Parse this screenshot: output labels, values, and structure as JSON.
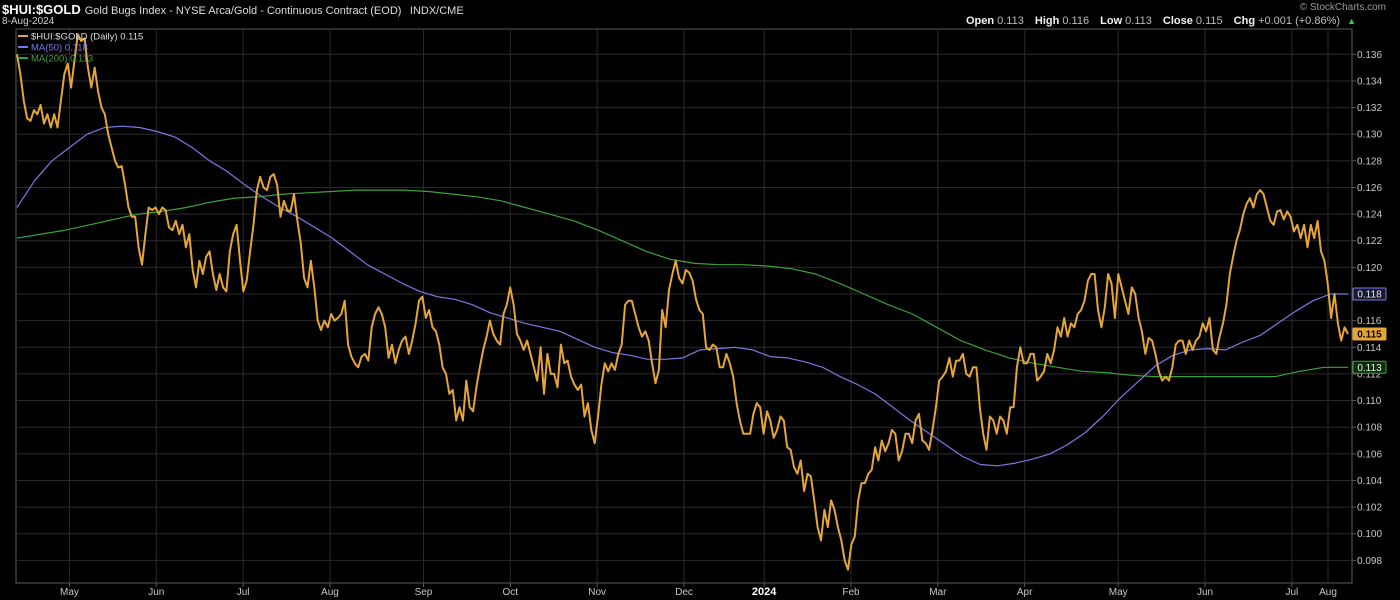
{
  "header": {
    "symbol": "$HUI:$GOLD",
    "description": "Gold Bugs Index - NYSE Arca/Gold - Continuous Contract (EOD)",
    "exchange": "INDX/CME",
    "date": "8-Aug-2024",
    "brand": "© StockCharts.com"
  },
  "ohlc": {
    "open_label": "Open",
    "open": "0.113",
    "high_label": "High",
    "high": "0.116",
    "low_label": "Low",
    "low": "0.113",
    "close_label": "Close",
    "close": "0.115",
    "chg_label": "Chg",
    "chg": "+0.001 (+0.86%)"
  },
  "colors": {
    "price": "#e5a537",
    "ma50": "#7b78e8",
    "ma200": "#3aa23a",
    "grid": "#2a2a2a",
    "axis": "#5a5a5a",
    "tick_text": "#c8c8c8"
  },
  "chart_data": {
    "type": "line",
    "title": "",
    "xlabel": "",
    "ylabel": "",
    "ylim": [
      0.0963,
      0.1379
    ],
    "y_ticks": [
      "0.098",
      "0.100",
      "0.102",
      "0.104",
      "0.106",
      "0.108",
      "0.110",
      "0.112",
      "0.114",
      "0.116",
      "0.118",
      "0.120",
      "0.122",
      "0.124",
      "0.126",
      "0.128",
      "0.130",
      "0.132",
      "0.134",
      "0.136"
    ],
    "x_ticks": [
      "May",
      "Jun",
      "Jul",
      "Aug",
      "Sep",
      "Oct",
      "Nov",
      "Dec",
      "2024",
      "Feb",
      "Mar",
      "Apr",
      "May",
      "Jun",
      "Jul",
      "Aug"
    ],
    "x_tick_pos": [
      0.04,
      0.105,
      0.17,
      0.235,
      0.305,
      0.37,
      0.435,
      0.5,
      0.56,
      0.625,
      0.69,
      0.755,
      0.825,
      0.89,
      0.955,
      1.02
    ],
    "legend_placement": "top-left",
    "series": [
      {
        "name": "$HUI:$GOLD (Daily) 0.115",
        "values": [
          0.136,
          0.1345,
          0.1325,
          0.1312,
          0.131,
          0.1318,
          0.1315,
          0.1322,
          0.1308,
          0.1315,
          0.1305,
          0.1315,
          0.1305,
          0.1325,
          0.1345,
          0.1353,
          0.1335,
          0.1355,
          0.1375,
          0.137,
          0.1372,
          0.135,
          0.1335,
          0.135,
          0.1332,
          0.132,
          0.1315,
          0.13,
          0.129,
          0.128,
          0.1275,
          0.1276,
          0.1262,
          0.1245,
          0.1238,
          0.1238,
          0.1215,
          0.1202,
          0.1225,
          0.1245,
          0.1243,
          0.1245,
          0.124,
          0.1245,
          0.1243,
          0.123,
          0.1228,
          0.1235,
          0.1225,
          0.1232,
          0.1215,
          0.1225,
          0.1198,
          0.1185,
          0.1205,
          0.1195,
          0.1208,
          0.1212,
          0.1195,
          0.1183,
          0.1195,
          0.1185,
          0.1182,
          0.1212,
          0.1225,
          0.1232,
          0.1205,
          0.1182,
          0.119,
          0.1212,
          0.1232,
          0.1258,
          0.1268,
          0.126,
          0.1258,
          0.1268,
          0.127,
          0.1262,
          0.1238,
          0.125,
          0.1243,
          0.1242,
          0.1255,
          0.1235,
          0.1218,
          0.1192,
          0.1185,
          0.1205,
          0.1185,
          0.116,
          0.1153,
          0.116,
          0.1155,
          0.1165,
          0.116,
          0.1162,
          0.1165,
          0.1175,
          0.1142,
          0.1133,
          0.1128,
          0.1125,
          0.1133,
          0.1135,
          0.113,
          0.1155,
          0.1165,
          0.117,
          0.1165,
          0.1155,
          0.1132,
          0.1142,
          0.1128,
          0.1138,
          0.1145,
          0.1148,
          0.1135,
          0.1145,
          0.1158,
          0.1175,
          0.1178,
          0.1162,
          0.1168,
          0.1155,
          0.1152,
          0.1142,
          0.1125,
          0.112,
          0.1105,
          0.1108,
          0.1085,
          0.1095,
          0.1085,
          0.1115,
          0.1095,
          0.1092,
          0.111,
          0.1125,
          0.1138,
          0.1148,
          0.116,
          0.115,
          0.1145,
          0.1142,
          0.1165,
          0.1172,
          0.1185,
          0.1172,
          0.115,
          0.1145,
          0.1138,
          0.1145,
          0.1135,
          0.1125,
          0.1115,
          0.114,
          0.1105,
          0.1135,
          0.112,
          0.112,
          0.111,
          0.1142,
          0.1128,
          0.113,
          0.1118,
          0.1112,
          0.1108,
          0.1112,
          0.1088,
          0.1098,
          0.1078,
          0.1068,
          0.1088,
          0.1112,
          0.1128,
          0.1122,
          0.1128,
          0.1123,
          0.1135,
          0.1142,
          0.1172,
          0.1175,
          0.1175,
          0.1165,
          0.1155,
          0.1148,
          0.1152,
          0.1145,
          0.1128,
          0.1113,
          0.1123,
          0.1168,
          0.1155,
          0.1183,
          0.1195,
          0.1205,
          0.1192,
          0.1188,
          0.1198,
          0.1196,
          0.119,
          0.1176,
          0.1168,
          0.1165,
          0.114,
          0.1138,
          0.1142,
          0.114,
          0.1125,
          0.1125,
          0.1135,
          0.1128,
          0.1118,
          0.1098,
          0.1085,
          0.1075,
          0.1075,
          0.1075,
          0.109,
          0.1098,
          0.1095,
          0.1075,
          0.1092,
          0.1085,
          0.1072,
          0.1078,
          0.1088,
          0.1085,
          0.1065,
          0.1063,
          0.105,
          0.1045,
          0.1055,
          0.1032,
          0.1045,
          0.1043,
          0.1025,
          0.1005,
          0.0995,
          0.1018,
          0.1005,
          0.1025,
          0.1018,
          0.1005,
          0.0995,
          0.098,
          0.0973,
          0.0992,
          0.0998,
          0.1025,
          0.1038,
          0.1038,
          0.1045,
          0.1048,
          0.1065,
          0.1055,
          0.107,
          0.1062,
          0.1068,
          0.1078,
          0.1075,
          0.1055,
          0.1062,
          0.1075,
          0.1075,
          0.1068,
          0.1085,
          0.109,
          0.107,
          0.1068,
          0.1063,
          0.1078,
          0.1095,
          0.1115,
          0.1118,
          0.1122,
          0.1132,
          0.1118,
          0.113,
          0.113,
          0.1135,
          0.112,
          0.1118,
          0.1125,
          0.1125,
          0.1095,
          0.1075,
          0.1063,
          0.1088,
          0.1085,
          0.1075,
          0.1088,
          0.1085,
          0.1075,
          0.1095,
          0.1095,
          0.1125,
          0.114,
          0.1128,
          0.1128,
          0.1135,
          0.1135,
          0.1115,
          0.1118,
          0.1122,
          0.1135,
          0.1128,
          0.1138,
          0.1155,
          0.1148,
          0.1162,
          0.1148,
          0.1158,
          0.1155,
          0.1165,
          0.1168,
          0.1175,
          0.119,
          0.1195,
          0.1195,
          0.1168,
          0.1155,
          0.117,
          0.1195,
          0.1188,
          0.1162,
          0.1195,
          0.1185,
          0.1175,
          0.1165,
          0.1185,
          0.118,
          0.1162,
          0.1152,
          0.1135,
          0.1147,
          0.1145,
          0.1135,
          0.1122,
          0.1115,
          0.1118,
          0.1115,
          0.1125,
          0.1142,
          0.1145,
          0.1145,
          0.1135,
          0.1145,
          0.1138,
          0.1145,
          0.1148,
          0.1158,
          0.1152,
          0.1162,
          0.1138,
          0.1135,
          0.1148,
          0.1158,
          0.1172,
          0.1195,
          0.1208,
          0.122,
          0.1228,
          0.124,
          0.1248,
          0.1252,
          0.1245,
          0.1255,
          0.1258,
          0.1255,
          0.1245,
          0.1235,
          0.1232,
          0.1242,
          0.1243,
          0.1236,
          0.1242,
          0.1238,
          0.1227,
          0.1232,
          0.1222,
          0.1232,
          0.1215,
          0.1232,
          0.1222,
          0.1235,
          0.1212,
          0.1205,
          0.1188,
          0.1162,
          0.118,
          0.1158,
          0.1145,
          0.1155,
          0.115
        ]
      },
      {
        "name": "MA(50) 0.118",
        "values": [
          0.1245,
          0.1265,
          0.128,
          0.129,
          0.13,
          0.1305,
          0.1306,
          0.1305,
          0.1302,
          0.1298,
          0.129,
          0.128,
          0.1272,
          0.1262,
          0.1253,
          0.1245,
          0.1238,
          0.123,
          0.1222,
          0.1212,
          0.1202,
          0.1195,
          0.1188,
          0.1182,
          0.1178,
          0.1176,
          0.1172,
          0.1166,
          0.1162,
          0.1158,
          0.1155,
          0.1152,
          0.1146,
          0.114,
          0.1136,
          0.1134,
          0.1131,
          0.1131,
          0.1132,
          0.1138,
          0.1139,
          0.114,
          0.1138,
          0.1133,
          0.1132,
          0.1129,
          0.1125,
          0.1118,
          0.1112,
          0.1105,
          0.1095,
          0.1085,
          0.1076,
          0.1067,
          0.1058,
          0.1052,
          0.1051,
          0.1053,
          0.1056,
          0.106,
          0.1067,
          0.1076,
          0.1088,
          0.1102,
          0.1114,
          0.1126,
          0.1134,
          0.1138,
          0.1139,
          0.1138,
          0.1144,
          0.1149,
          0.1158,
          0.1167,
          0.1175,
          0.118,
          0.118
        ]
      },
      {
        "name": "MA(200) 0.113",
        "values": [
          0.1222,
          0.1225,
          0.1228,
          0.1232,
          0.1236,
          0.124,
          0.1242,
          0.1245,
          0.1249,
          0.1252,
          0.1253,
          0.1255,
          0.1256,
          0.1257,
          0.1258,
          0.1258,
          0.1258,
          0.1257,
          0.1255,
          0.1253,
          0.125,
          0.1245,
          0.124,
          0.1235,
          0.1228,
          0.122,
          0.1212,
          0.1206,
          0.1203,
          0.1202,
          0.1202,
          0.1201,
          0.1199,
          0.1195,
          0.1188,
          0.118,
          0.1172,
          0.1165,
          0.1155,
          0.1145,
          0.1138,
          0.1132,
          0.1128,
          0.1125,
          0.1122,
          0.1121,
          0.1119,
          0.1118,
          0.1118,
          0.1118,
          0.1118,
          0.1118,
          0.1118,
          0.1122,
          0.1125,
          0.1125
        ]
      }
    ],
    "last_labels": {
      "ma50": "0.118",
      "price": "0.115",
      "ma200": "0.113"
    }
  }
}
